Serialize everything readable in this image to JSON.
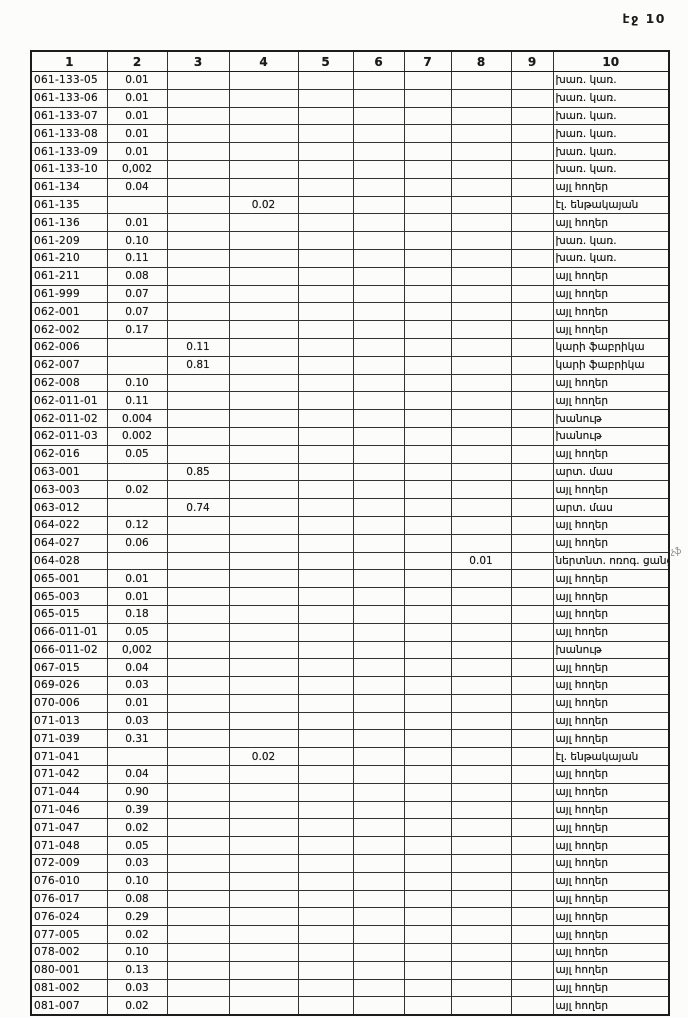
{
  "page": {
    "label": "էջ 10"
  },
  "table": {
    "headers": [
      "1",
      "2",
      "3",
      "4",
      "5",
      "6",
      "7",
      "8",
      "9",
      "10"
    ],
    "rows": [
      [
        "061-133-05",
        "0.01",
        "",
        "",
        "",
        "",
        "",
        "",
        "",
        "խառ. կառ."
      ],
      [
        "061-133-06",
        "0.01",
        "",
        "",
        "",
        "",
        "",
        "",
        "",
        "խառ. կառ."
      ],
      [
        "061-133-07",
        "0.01",
        "",
        "",
        "",
        "",
        "",
        "",
        "",
        "խառ. կառ."
      ],
      [
        "061-133-08",
        "0.01",
        "",
        "",
        "",
        "",
        "",
        "",
        "",
        "խառ. կառ."
      ],
      [
        "061-133-09",
        "0.01",
        "",
        "",
        "",
        "",
        "",
        "",
        "",
        "խառ. կառ."
      ],
      [
        "061-133-10",
        "0,002",
        "",
        "",
        "",
        "",
        "",
        "",
        "",
        "խառ. կառ."
      ],
      [
        "061-134",
        "0.04",
        "",
        "",
        "",
        "",
        "",
        "",
        "",
        "այլ հողեր"
      ],
      [
        "061-135",
        "",
        "",
        "0.02",
        "",
        "",
        "",
        "",
        "",
        "էլ. ենթակայան"
      ],
      [
        "061-136",
        "0.01",
        "",
        "",
        "",
        "",
        "",
        "",
        "",
        "այլ հողեր"
      ],
      [
        "061-209",
        "0.10",
        "",
        "",
        "",
        "",
        "",
        "",
        "",
        "խառ. կառ."
      ],
      [
        "061-210",
        "0.11",
        "",
        "",
        "",
        "",
        "",
        "",
        "",
        "խառ. կառ."
      ],
      [
        "061-211",
        "0.08",
        "",
        "",
        "",
        "",
        "",
        "",
        "",
        "այլ հողեր"
      ],
      [
        "061-999",
        "0.07",
        "",
        "",
        "",
        "",
        "",
        "",
        "",
        "այլ հողեր"
      ],
      [
        "062-001",
        "0.07",
        "",
        "",
        "",
        "",
        "",
        "",
        "",
        "այլ հողեր"
      ],
      [
        "062-002",
        "0.17",
        "",
        "",
        "",
        "",
        "",
        "",
        "",
        "այլ հողեր"
      ],
      [
        "062-006",
        "",
        "0.11",
        "",
        "",
        "",
        "",
        "",
        "",
        "կարի ֆաբրիկա"
      ],
      [
        "062-007",
        "",
        "0.81",
        "",
        "",
        "",
        "",
        "",
        "",
        "կարի ֆաբրիկա"
      ],
      [
        "062-008",
        "0.10",
        "",
        "",
        "",
        "",
        "",
        "",
        "",
        "այլ հողեր"
      ],
      [
        "062-011-01",
        "0.11",
        "",
        "",
        "",
        "",
        "",
        "",
        "",
        "այլ հողեր"
      ],
      [
        "062-011-02",
        "0.004",
        "",
        "",
        "",
        "",
        "",
        "",
        "",
        "խանութ"
      ],
      [
        "062-011-03",
        "0.002",
        "",
        "",
        "",
        "",
        "",
        "",
        "",
        "խանութ"
      ],
      [
        "062-016",
        "0.05",
        "",
        "",
        "",
        "",
        "",
        "",
        "",
        "այլ հողեր"
      ],
      [
        "063-001",
        "",
        "0.85",
        "",
        "",
        "",
        "",
        "",
        "",
        "արտ. մաս"
      ],
      [
        "063-003",
        "0.02",
        "",
        "",
        "",
        "",
        "",
        "",
        "",
        "այլ հողեր"
      ],
      [
        "063-012",
        "",
        "0.74",
        "",
        "",
        "",
        "",
        "",
        "",
        "արտ. մաս"
      ],
      [
        "064-022",
        "0.12",
        "",
        "",
        "",
        "",
        "",
        "",
        "",
        "այլ հողեր"
      ],
      [
        "064-027",
        "0.06",
        "",
        "",
        "",
        "",
        "",
        "",
        "",
        "այլ հողեր"
      ],
      [
        "064-028",
        "",
        "",
        "",
        "",
        "",
        "",
        "0.01",
        "",
        "ներտնտ. ոռոգ. ցանց"
      ],
      [
        "065-001",
        "0.01",
        "",
        "",
        "",
        "",
        "",
        "",
        "",
        "այլ հողեր"
      ],
      [
        "065-003",
        "0.01",
        "",
        "",
        "",
        "",
        "",
        "",
        "",
        "այլ հողեր"
      ],
      [
        "065-015",
        "0.18",
        "",
        "",
        "",
        "",
        "",
        "",
        "",
        "այլ հողեր"
      ],
      [
        "066-011-01",
        "0.05",
        "",
        "",
        "",
        "",
        "",
        "",
        "",
        "այլ հողեր"
      ],
      [
        "066-011-02",
        "0,002",
        "",
        "",
        "",
        "",
        "",
        "",
        "",
        "խանութ"
      ],
      [
        "067-015",
        "0.04",
        "",
        "",
        "",
        "",
        "",
        "",
        "",
        "այլ հողեր"
      ],
      [
        "069-026",
        "0.03",
        "",
        "",
        "",
        "",
        "",
        "",
        "",
        "այլ հողեր"
      ],
      [
        "070-006",
        "0.01",
        "",
        "",
        "",
        "",
        "",
        "",
        "",
        "այլ հողեր"
      ],
      [
        "071-013",
        "0.03",
        "",
        "",
        "",
        "",
        "",
        "",
        "",
        "այլ հողեր"
      ],
      [
        "071-039",
        "0.31",
        "",
        "",
        "",
        "",
        "",
        "",
        "",
        "այլ հողեր"
      ],
      [
        "071-041",
        "",
        "",
        "0.02",
        "",
        "",
        "",
        "",
        "",
        "էլ. ենթակայան"
      ],
      [
        "071-042",
        "0.04",
        "",
        "",
        "",
        "",
        "",
        "",
        "",
        "այլ հողեր"
      ],
      [
        "071-044",
        "0.90",
        "",
        "",
        "",
        "",
        "",
        "",
        "",
        "այլ հողեր"
      ],
      [
        "071-046",
        "0.39",
        "",
        "",
        "",
        "",
        "",
        "",
        "",
        "այլ հողեր"
      ],
      [
        "071-047",
        "0.02",
        "",
        "",
        "",
        "",
        "",
        "",
        "",
        "այլ հողեր"
      ],
      [
        "071-048",
        "0.05",
        "",
        "",
        "",
        "",
        "",
        "",
        "",
        "այլ հողեր"
      ],
      [
        "072-009",
        "0.03",
        "",
        "",
        "",
        "",
        "",
        "",
        "",
        "այլ հողեր"
      ],
      [
        "076-010",
        "0.10",
        "",
        "",
        "",
        "",
        "",
        "",
        "",
        "այլ հողեր"
      ],
      [
        "076-017",
        "0.08",
        "",
        "",
        "",
        "",
        "",
        "",
        "",
        "այլ հողեր"
      ],
      [
        "076-024",
        "0.29",
        "",
        "",
        "",
        "",
        "",
        "",
        "",
        "այլ հողեր"
      ],
      [
        "077-005",
        "0.02",
        "",
        "",
        "",
        "",
        "",
        "",
        "",
        "այլ հողեր"
      ],
      [
        "078-002",
        "0.10",
        "",
        "",
        "",
        "",
        "",
        "",
        "",
        "այլ հողեր"
      ],
      [
        "080-001",
        "0.13",
        "",
        "",
        "",
        "",
        "",
        "",
        "",
        "այլ հողեր"
      ],
      [
        "081-002",
        "0.03",
        "",
        "",
        "",
        "",
        "",
        "",
        "",
        "այլ հողեր"
      ],
      [
        "081-007",
        "0.02",
        "",
        "",
        "",
        "",
        "",
        "",
        "",
        "այլ հողեր"
      ]
    ]
  },
  "annotation": {
    "text": "չֆ"
  }
}
